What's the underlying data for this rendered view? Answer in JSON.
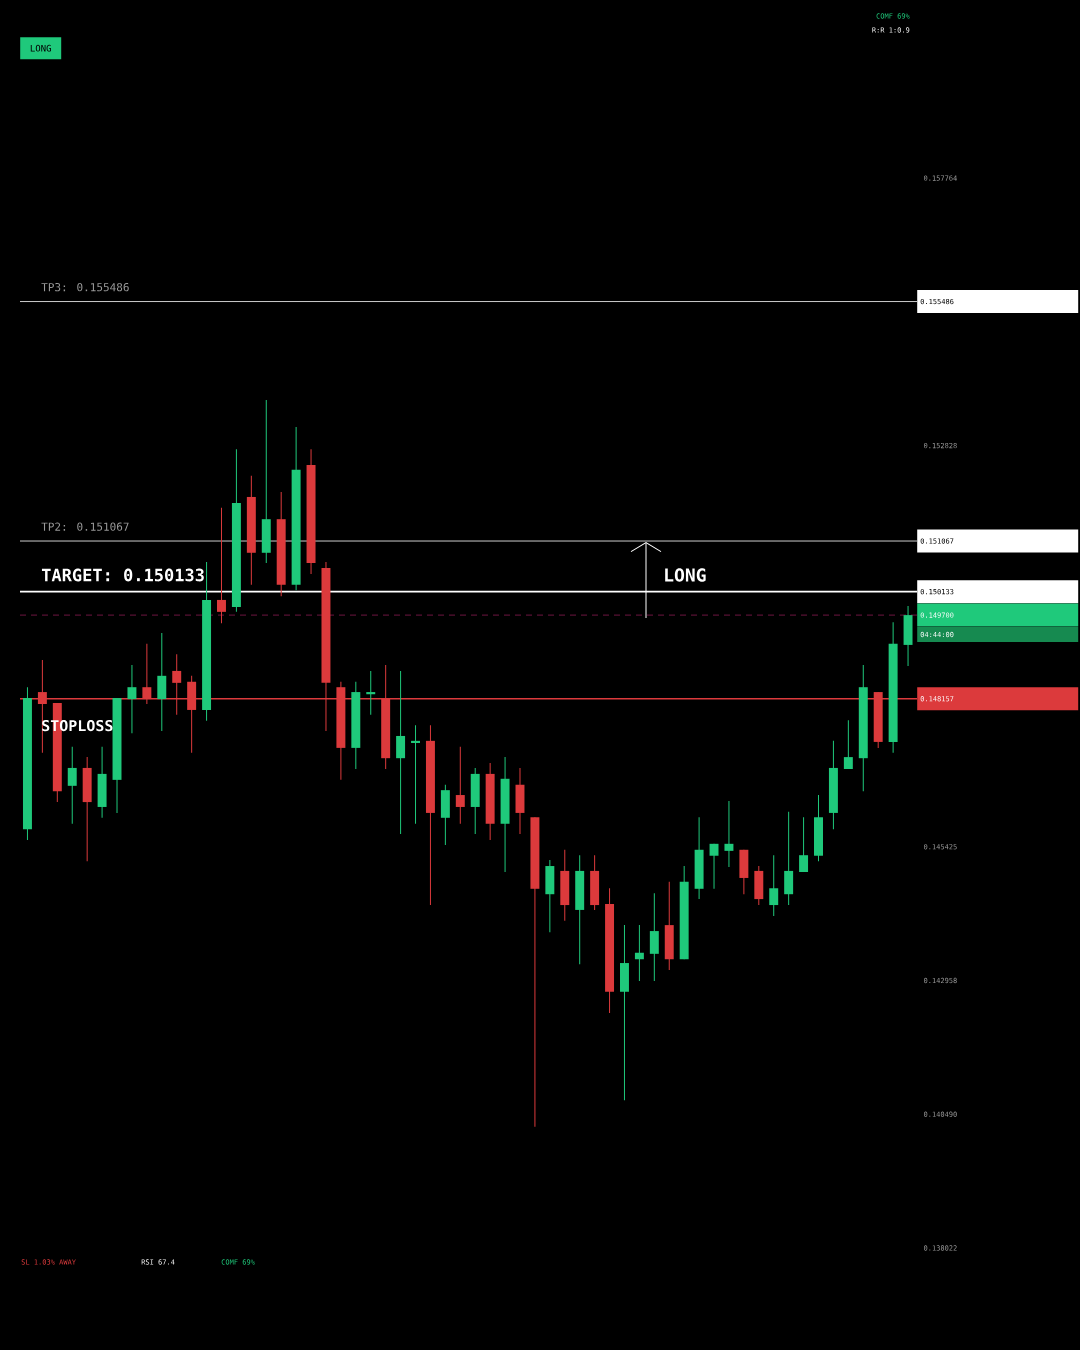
{
  "chart_data": {
    "type": "candlestick",
    "categories": [
      null,
      null,
      null,
      null,
      null,
      null,
      null,
      null,
      null,
      null,
      null,
      null,
      null,
      null,
      null,
      null,
      null,
      null,
      null,
      null,
      null,
      null,
      null,
      null,
      null,
      null,
      null,
      null,
      null,
      null,
      null,
      null,
      null,
      null,
      null,
      null,
      null,
      null,
      null,
      null,
      null,
      null,
      null,
      null,
      null,
      null,
      null,
      null,
      null,
      null,
      null,
      null,
      null,
      null,
      null,
      null,
      null,
      null,
      null,
      null
    ],
    "ohlc": [
      [
        0.14575,
        0.14837,
        0.14555,
        0.14817
      ],
      [
        0.14828,
        0.14887,
        0.14716,
        0.14806
      ],
      [
        0.14808,
        0.14808,
        0.14625,
        0.14645
      ],
      [
        0.14655,
        0.14727,
        0.14585,
        0.14688
      ],
      [
        0.14688,
        0.14708,
        0.14516,
        0.14625
      ],
      [
        0.14616,
        0.14727,
        0.14596,
        0.14677
      ],
      [
        0.14666,
        0.14817,
        0.14605,
        0.14817
      ],
      [
        0.14815,
        0.14878,
        0.14752,
        0.14837
      ],
      [
        0.14837,
        0.14917,
        0.14806,
        0.14815
      ],
      [
        0.14815,
        0.14937,
        0.14756,
        0.14858
      ],
      [
        0.14867,
        0.14898,
        0.14786,
        0.14845
      ],
      [
        0.14847,
        0.14858,
        0.14716,
        0.14795
      ],
      [
        0.14795,
        0.15068,
        0.14775,
        0.14998
      ],
      [
        0.14998,
        0.15168,
        0.14955,
        0.14976
      ],
      [
        0.14985,
        0.15276,
        0.14976,
        0.15177
      ],
      [
        0.15188,
        0.15227,
        0.15026,
        0.15085
      ],
      [
        0.15085,
        0.15367,
        0.15066,
        0.15147
      ],
      [
        0.15147,
        0.15197,
        0.15005,
        0.15026
      ],
      [
        0.15026,
        0.15317,
        0.15016,
        0.15238
      ],
      [
        0.15247,
        0.15276,
        0.15046,
        0.15066
      ],
      [
        0.15057,
        0.15068,
        0.14756,
        0.14845
      ],
      [
        0.14837,
        0.14847,
        0.14666,
        0.14725
      ],
      [
        0.14725,
        0.14847,
        0.14686,
        0.14828
      ],
      [
        0.14824,
        0.14867,
        0.14786,
        0.14828
      ],
      [
        0.14817,
        0.14878,
        0.14686,
        0.14706
      ],
      [
        0.14706,
        0.14867,
        0.14566,
        0.14747
      ],
      [
        0.14734,
        0.14767,
        0.14585,
        0.14738
      ],
      [
        0.14738,
        0.14767,
        0.14435,
        0.14605
      ],
      [
        0.14596,
        0.14657,
        0.14546,
        0.14647
      ],
      [
        0.14638,
        0.14727,
        0.14585,
        0.14616
      ],
      [
        0.14616,
        0.14688,
        0.14566,
        0.14677
      ],
      [
        0.14677,
        0.14697,
        0.14555,
        0.14585
      ],
      [
        0.14585,
        0.14708,
        0.14496,
        0.14668
      ],
      [
        0.14657,
        0.14688,
        0.14566,
        0.14605
      ],
      [
        0.14597,
        0.14597,
        0.14026,
        0.14465
      ],
      [
        0.14455,
        0.14518,
        0.14385,
        0.14507
      ],
      [
        0.14498,
        0.14537,
        0.14406,
        0.14435
      ],
      [
        0.14426,
        0.14527,
        0.14326,
        0.14498
      ],
      [
        0.14498,
        0.14527,
        0.14426,
        0.14435
      ],
      [
        0.14437,
        0.14466,
        0.14236,
        0.14275
      ],
      [
        0.14275,
        0.14398,
        0.14075,
        0.14328
      ],
      [
        0.14335,
        0.14398,
        0.14295,
        0.14347
      ],
      [
        0.14345,
        0.14457,
        0.14295,
        0.14387
      ],
      [
        0.14398,
        0.14478,
        0.14315,
        0.14335
      ],
      [
        0.14335,
        0.14507,
        0.14335,
        0.14478
      ],
      [
        0.14465,
        0.14597,
        0.14446,
        0.14537
      ],
      [
        0.14526,
        0.14548,
        0.14465,
        0.14548
      ],
      [
        0.14535,
        0.14627,
        0.14505,
        0.14548
      ],
      [
        0.14537,
        0.14537,
        0.14455,
        0.14485
      ],
      [
        0.14498,
        0.14507,
        0.14435,
        0.14446
      ],
      [
        0.14435,
        0.14527,
        0.14415,
        0.14466
      ],
      [
        0.14455,
        0.14607,
        0.14435,
        0.14498
      ],
      [
        0.14496,
        0.14597,
        0.14496,
        0.14527
      ],
      [
        0.14526,
        0.14638,
        0.14516,
        0.14597
      ],
      [
        0.14605,
        0.14738,
        0.14575,
        0.14688
      ],
      [
        0.14686,
        0.14776,
        0.14686,
        0.14708
      ],
      [
        0.14706,
        0.14878,
        0.14645,
        0.14837
      ],
      [
        0.14828,
        0.14828,
        0.14725,
        0.14736
      ],
      [
        0.14736,
        0.14957,
        0.14716,
        0.14917
      ],
      [
        0.14915,
        0.14987,
        0.14876,
        0.1497
      ]
    ],
    "colors": [
      "#1fc97b",
      "#dc3a3c",
      "#dc3a3c",
      "#1fc97b",
      "#dc3a3c",
      "#1fc97b",
      "#1fc97b",
      "#1fc97b",
      "#dc3a3c",
      "#1fc97b",
      "#dc3a3c",
      "#dc3a3c",
      "#1fc97b",
      "#dc3a3c",
      "#1fc97b",
      "#dc3a3c",
      "#1fc97b",
      "#dc3a3c",
      "#1fc97b",
      "#dc3a3c",
      "#dc3a3c",
      "#dc3a3c",
      "#1fc97b",
      "#1fc97b",
      "#dc3a3c",
      "#1fc97b",
      "#1fc97b",
      "#dc3a3c",
      "#1fc97b",
      "#dc3a3c",
      "#1fc97b",
      "#dc3a3c",
      "#1fc97b",
      "#dc3a3c",
      "#dc3a3c",
      "#1fc97b",
      "#dc3a3c",
      "#1fc97b",
      "#dc3a3c",
      "#dc3a3c",
      "#1fc97b",
      "#1fc97b",
      "#1fc97b",
      "#dc3a3c",
      "#1fc97b",
      "#1fc97b",
      "#1fc97b",
      "#1fc97b",
      "#dc3a3c",
      "#dc3a3c",
      "#1fc97b",
      "#1fc97b",
      "#1fc97b",
      "#1fc97b",
      "#1fc97b",
      "#1fc97b",
      "#1fc97b",
      "#dc3a3c",
      "#1fc97b",
      "#1fc97b"
    ],
    "ylim": [
      0.13614,
      0.16105
    ],
    "yticks": [
      {
        "value": 0.157764,
        "label": "0.157764"
      },
      {
        "value": 0.152828,
        "label": "0.152828"
      },
      {
        "value": 0.145425,
        "label": "0.145425"
      },
      {
        "value": 0.142958,
        "label": "0.142958"
      },
      {
        "value": 0.14049,
        "label": "0.140490"
      },
      {
        "value": 0.138022,
        "label": "0.138022"
      }
    ],
    "ref_lines": [
      {
        "axis": "y",
        "value": 0.155486,
        "color": "#ffffff",
        "line_style": "solid"
      },
      {
        "axis": "y",
        "value": 0.151067,
        "color": "#ffffff",
        "line_style": "solid"
      },
      {
        "axis": "y",
        "value": 0.150133,
        "color": "#ffffff",
        "line_style": "solid"
      },
      {
        "axis": "y",
        "value": 0.1497,
        "color": "#8a1a50",
        "line_style": "dashed"
      },
      {
        "axis": "y",
        "value": 0.148157,
        "color": "#dc3a3c",
        "line_style": "solid"
      }
    ],
    "annotations": [
      "LONG",
      "COMF 69%",
      "R:R 1:0.9",
      {
        "text": "TP3: 0.155486",
        "y": 0.155486
      },
      {
        "text": "TP2: 0.151067",
        "y": 0.151067
      },
      {
        "text": "TARGET: 0.150133",
        "y": 0.150133
      },
      {
        "text": "STOPLOSS",
        "y": 0.148157
      },
      "LONG",
      "0.155486",
      "0.151067",
      "0.150133",
      "0.149700",
      "0.148157",
      "04:44:00",
      "SL 1.03% AWAY",
      "RSI 67.4",
      "COMF 69%"
    ]
  }
}
